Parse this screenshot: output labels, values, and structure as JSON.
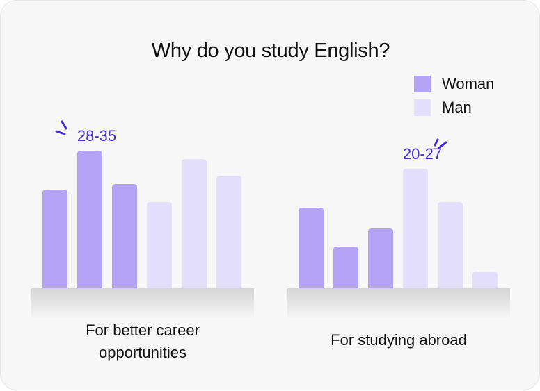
{
  "colors": {
    "woman": "#b3a4f6",
    "man": "#e3dffb",
    "accent": "#4a2bd8",
    "base": "#dcdcdc"
  },
  "chart_data": {
    "type": "bar",
    "title": "Why do you study English?",
    "legend": [
      {
        "name": "Woman",
        "color": "#b3a4f6"
      },
      {
        "name": "Man",
        "color": "#e3dffb"
      }
    ],
    "legend_position": "top-right",
    "groups": [
      {
        "label_lines": [
          "For better career",
          "opportunities"
        ],
        "bars": [
          {
            "series": "Woman",
            "value": 142
          },
          {
            "series": "Woman",
            "value": 198,
            "annotation": "28-35"
          },
          {
            "series": "Woman",
            "value": 150
          },
          {
            "series": "Man",
            "value": 124
          },
          {
            "series": "Man",
            "value": 186
          },
          {
            "series": "Man",
            "value": 162
          }
        ]
      },
      {
        "label_lines": [
          "For studying abroad"
        ],
        "bars": [
          {
            "series": "Woman",
            "value": 116
          },
          {
            "series": "Woman",
            "value": 60
          },
          {
            "series": "Woman",
            "value": 86
          },
          {
            "series": "Man",
            "value": 172,
            "annotation": "20-27"
          },
          {
            "series": "Man",
            "value": 124
          },
          {
            "series": "Man",
            "value": 24
          }
        ]
      }
    ]
  }
}
